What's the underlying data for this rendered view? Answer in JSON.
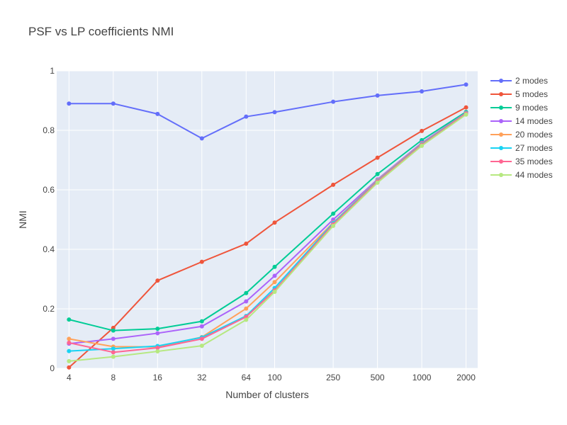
{
  "chart_data": {
    "type": "line",
    "title": "PSF vs LP coefficients NMI",
    "xlabel": "Number of clusters",
    "ylabel": "NMI",
    "x_scale": "log",
    "x": [
      4,
      8,
      16,
      32,
      64,
      100,
      250,
      500,
      1000,
      2000
    ],
    "x_tick_labels": [
      "4",
      "8",
      "16",
      "32",
      "64",
      "100",
      "250",
      "500",
      "1000",
      "2000"
    ],
    "ylim": [
      0,
      1
    ],
    "y_ticks": [
      0,
      0.2,
      0.4,
      0.6,
      0.8,
      1
    ],
    "y_tick_labels": [
      "0",
      "0.2",
      "0.4",
      "0.6",
      "0.8",
      "1"
    ],
    "grid": true,
    "legend_position": "top-right",
    "series": [
      {
        "name": "2 modes",
        "color": "#636efa",
        "values": [
          0.89,
          0.89,
          0.855,
          0.773,
          0.846,
          0.861,
          0.896,
          0.917,
          0.931,
          0.954
        ]
      },
      {
        "name": "5 modes",
        "color": "#EF553B",
        "values": [
          0.003,
          0.136,
          0.295,
          0.358,
          0.419,
          0.49,
          0.617,
          0.708,
          0.798,
          0.877
        ]
      },
      {
        "name": "9 modes",
        "color": "#00cc96",
        "values": [
          0.164,
          0.127,
          0.133,
          0.158,
          0.253,
          0.341,
          0.52,
          0.653,
          0.767,
          0.862
        ]
      },
      {
        "name": "14 modes",
        "color": "#ab63fa",
        "values": [
          0.083,
          0.099,
          0.118,
          0.141,
          0.225,
          0.311,
          0.5,
          0.635,
          0.758,
          0.859
        ]
      },
      {
        "name": "20 modes",
        "color": "#FFA15A",
        "values": [
          0.099,
          0.073,
          0.072,
          0.105,
          0.201,
          0.29,
          0.49,
          0.632,
          0.755,
          0.858
        ]
      },
      {
        "name": "27 modes",
        "color": "#19d3f3",
        "values": [
          0.058,
          0.066,
          0.075,
          0.104,
          0.176,
          0.27,
          0.488,
          0.63,
          0.753,
          0.857
        ]
      },
      {
        "name": "35 modes",
        "color": "#FF6692",
        "values": [
          0.086,
          0.054,
          0.069,
          0.099,
          0.173,
          0.262,
          0.484,
          0.628,
          0.751,
          0.856
        ]
      },
      {
        "name": "44 modes",
        "color": "#B6E880",
        "values": [
          0.024,
          0.039,
          0.057,
          0.076,
          0.163,
          0.257,
          0.479,
          0.624,
          0.748,
          0.853
        ]
      }
    ]
  }
}
